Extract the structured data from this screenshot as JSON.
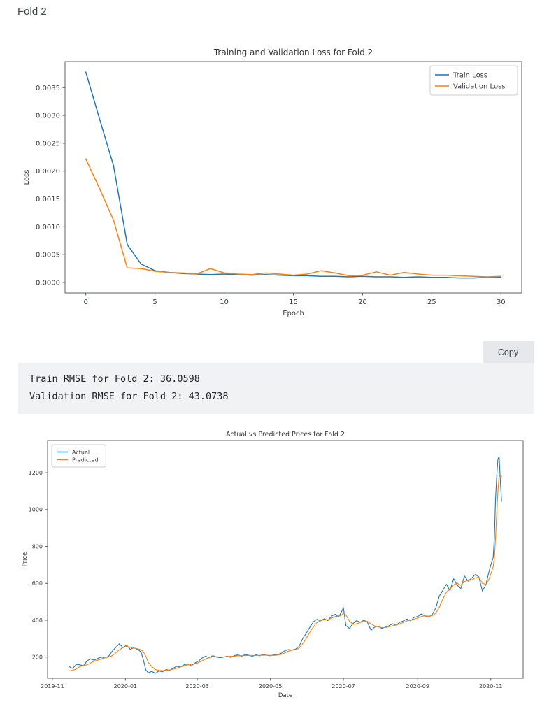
{
  "page": {
    "heading": "Fold 2"
  },
  "output_block": {
    "copy_label": "Copy",
    "lines": [
      "Train RMSE for Fold 2: 36.0598",
      "Validation RMSE for Fold 2: 43.0738"
    ]
  },
  "colors": {
    "series_blue": "#1f77b4",
    "series_orange": "#ff7f0e",
    "axis_text": "#3a3a3a",
    "spine": "#5d6063",
    "code_background": "#f0f2f4",
    "copy_background": "#e6e8eb"
  },
  "chart_data": [
    {
      "type": "line",
      "title": "Training and Validation Loss for Fold 2",
      "xlabel": "Epoch",
      "ylabel": "Loss",
      "legend_position": "upper right",
      "grid": false,
      "xlim": [
        -1.5,
        31.5
      ],
      "ylim": [
        -0.000189,
        0.003969
      ],
      "xtick_vals": [
        0,
        5,
        10,
        15,
        20,
        25,
        30
      ],
      "xtick_labels": [
        "0",
        "5",
        "10",
        "15",
        "20",
        "25",
        "30"
      ],
      "ytick_vals": [
        0.0,
        0.0005,
        0.001,
        0.0015,
        0.002,
        0.0025,
        0.003,
        0.0035
      ],
      "ytick_labels": [
        "0.0000",
        "0.0005",
        "0.0010",
        "0.0015",
        "0.0020",
        "0.0025",
        "0.0030",
        "0.0035"
      ],
      "x": [
        0,
        1,
        2,
        3,
        4,
        5,
        6,
        7,
        8,
        9,
        10,
        11,
        12,
        13,
        14,
        15,
        16,
        17,
        18,
        19,
        20,
        21,
        22,
        23,
        24,
        25,
        26,
        27,
        28,
        29,
        30
      ],
      "series": [
        {
          "name": "Train Loss",
          "color": "#1f77b4",
          "values": [
            0.00378,
            0.00293,
            0.0021,
            0.00068,
            0.00033,
            0.00021,
            0.00018,
            0.00016,
            0.00015,
            0.00014,
            0.00015,
            0.00014,
            0.00013,
            0.00014,
            0.00013,
            0.00012,
            0.00012,
            0.00011,
            0.00011,
            0.0001,
            0.00011,
            0.0001,
            0.0001,
            9e-05,
            0.0001,
            9e-05,
            9e-05,
            8e-05,
            8e-05,
            9e-05,
            9e-05
          ]
        },
        {
          "name": "Validation Loss",
          "color": "#ff7f0e",
          "values": [
            0.00222,
            0.00168,
            0.00112,
            0.00026,
            0.00025,
            0.0002,
            0.00018,
            0.00017,
            0.00015,
            0.00025,
            0.00017,
            0.00015,
            0.00014,
            0.00017,
            0.00015,
            0.00013,
            0.00015,
            0.00021,
            0.00017,
            0.00012,
            0.00013,
            0.00019,
            0.00013,
            0.00018,
            0.00015,
            0.00013,
            0.00013,
            0.00012,
            0.00011,
            0.0001,
            0.00011
          ]
        }
      ]
    },
    {
      "type": "line",
      "title": "Actual vs Predicted Prices for Fold 2",
      "xlabel": "Date",
      "ylabel": "Price",
      "legend_position": "upper left",
      "grid": false,
      "x_axis_note": "x values are days since 2019-11-01",
      "xlim": [
        -4,
        393
      ],
      "ylim": [
        85,
        1375
      ],
      "xtick_vals": [
        0,
        61,
        121,
        182,
        243,
        305,
        366
      ],
      "xtick_labels": [
        "2019-11",
        "2020-01",
        "2020-03",
        "2020-05",
        "2020-07",
        "2020-09",
        "2020-11"
      ],
      "ytick_vals": [
        200,
        400,
        600,
        800,
        1000,
        1200
      ],
      "ytick_labels": [
        "200",
        "400",
        "600",
        "800",
        "1000",
        "1200"
      ],
      "x": [
        14,
        17,
        20,
        23,
        26,
        29,
        32,
        35,
        38,
        41,
        44,
        47,
        50,
        53,
        56,
        59,
        62,
        65,
        68,
        71,
        74,
        76,
        78,
        80,
        83,
        86,
        89,
        92,
        95,
        98,
        101,
        104,
        107,
        110,
        113,
        116,
        119,
        122,
        125,
        128,
        131,
        134,
        137,
        140,
        143,
        146,
        149,
        152,
        155,
        158,
        161,
        164,
        167,
        170,
        173,
        176,
        179,
        182,
        185,
        188,
        191,
        194,
        197,
        200,
        203,
        206,
        209,
        212,
        215,
        218,
        221,
        224,
        227,
        230,
        233,
        236,
        239,
        241,
        243,
        245,
        248,
        251,
        254,
        257,
        260,
        263,
        266,
        269,
        272,
        275,
        278,
        281,
        284,
        287,
        290,
        293,
        296,
        299,
        302,
        305,
        308,
        311,
        314,
        317,
        320,
        323,
        326,
        329,
        332,
        335,
        338,
        341,
        344,
        347,
        350,
        353,
        356,
        359,
        362,
        364,
        366,
        368,
        369,
        370,
        371,
        372,
        373,
        374,
        375
      ],
      "series": [
        {
          "name": "Actual",
          "color": "#1f77b4",
          "values": [
            148,
            138,
            160,
            158,
            152,
            180,
            190,
            183,
            193,
            200,
            195,
            205,
            232,
            252,
            272,
            250,
            265,
            242,
            250,
            242,
            228,
            185,
            130,
            115,
            122,
            112,
            125,
            120,
            132,
            128,
            140,
            150,
            146,
            158,
            163,
            152,
            168,
            178,
            195,
            205,
            196,
            208,
            200,
            196,
            200,
            205,
            198,
            208,
            212,
            204,
            214,
            210,
            204,
            212,
            207,
            214,
            210,
            207,
            212,
            214,
            220,
            234,
            240,
            238,
            243,
            258,
            300,
            330,
            362,
            392,
            405,
            396,
            408,
            398,
            422,
            432,
            418,
            440,
            468,
            372,
            355,
            382,
            398,
            388,
            400,
            390,
            345,
            362,
            368,
            356,
            362,
            370,
            380,
            374,
            388,
            396,
            406,
            396,
            415,
            420,
            434,
            424,
            416,
            430,
            465,
            530,
            562,
            595,
            560,
            625,
            590,
            572,
            640,
            612,
            628,
            648,
            635,
            558,
            595,
            650,
            700,
            740,
            850,
            1060,
            1185,
            1275,
            1288,
            1150,
            1045
          ]
        },
        {
          "name": "Predicted",
          "color": "#ff7f0e",
          "values": [
            125,
            128,
            135,
            148,
            155,
            158,
            168,
            178,
            183,
            190,
            196,
            200,
            208,
            222,
            240,
            252,
            258,
            252,
            248,
            245,
            240,
            228,
            205,
            172,
            148,
            132,
            128,
            126,
            128,
            130,
            134,
            140,
            146,
            152,
            158,
            160,
            164,
            170,
            180,
            190,
            198,
            202,
            202,
            200,
            201,
            203,
            204,
            205,
            207,
            207,
            208,
            209,
            208,
            208,
            209,
            210,
            210,
            209,
            209,
            211,
            214,
            222,
            232,
            237,
            240,
            248,
            272,
            302,
            335,
            365,
            388,
            398,
            403,
            402,
            410,
            420,
            422,
            425,
            438,
            430,
            395,
            378,
            380,
            388,
            392,
            394,
            380,
            368,
            364,
            360,
            360,
            364,
            370,
            374,
            380,
            388,
            396,
            400,
            406,
            412,
            420,
            424,
            422,
            424,
            438,
            470,
            515,
            552,
            570,
            592,
            600,
            590,
            610,
            615,
            618,
            630,
            632,
            600,
            595,
            615,
            650,
            690,
            740,
            850,
            980,
            1100,
            1185,
            1190,
            1180
          ]
        }
      ]
    }
  ]
}
